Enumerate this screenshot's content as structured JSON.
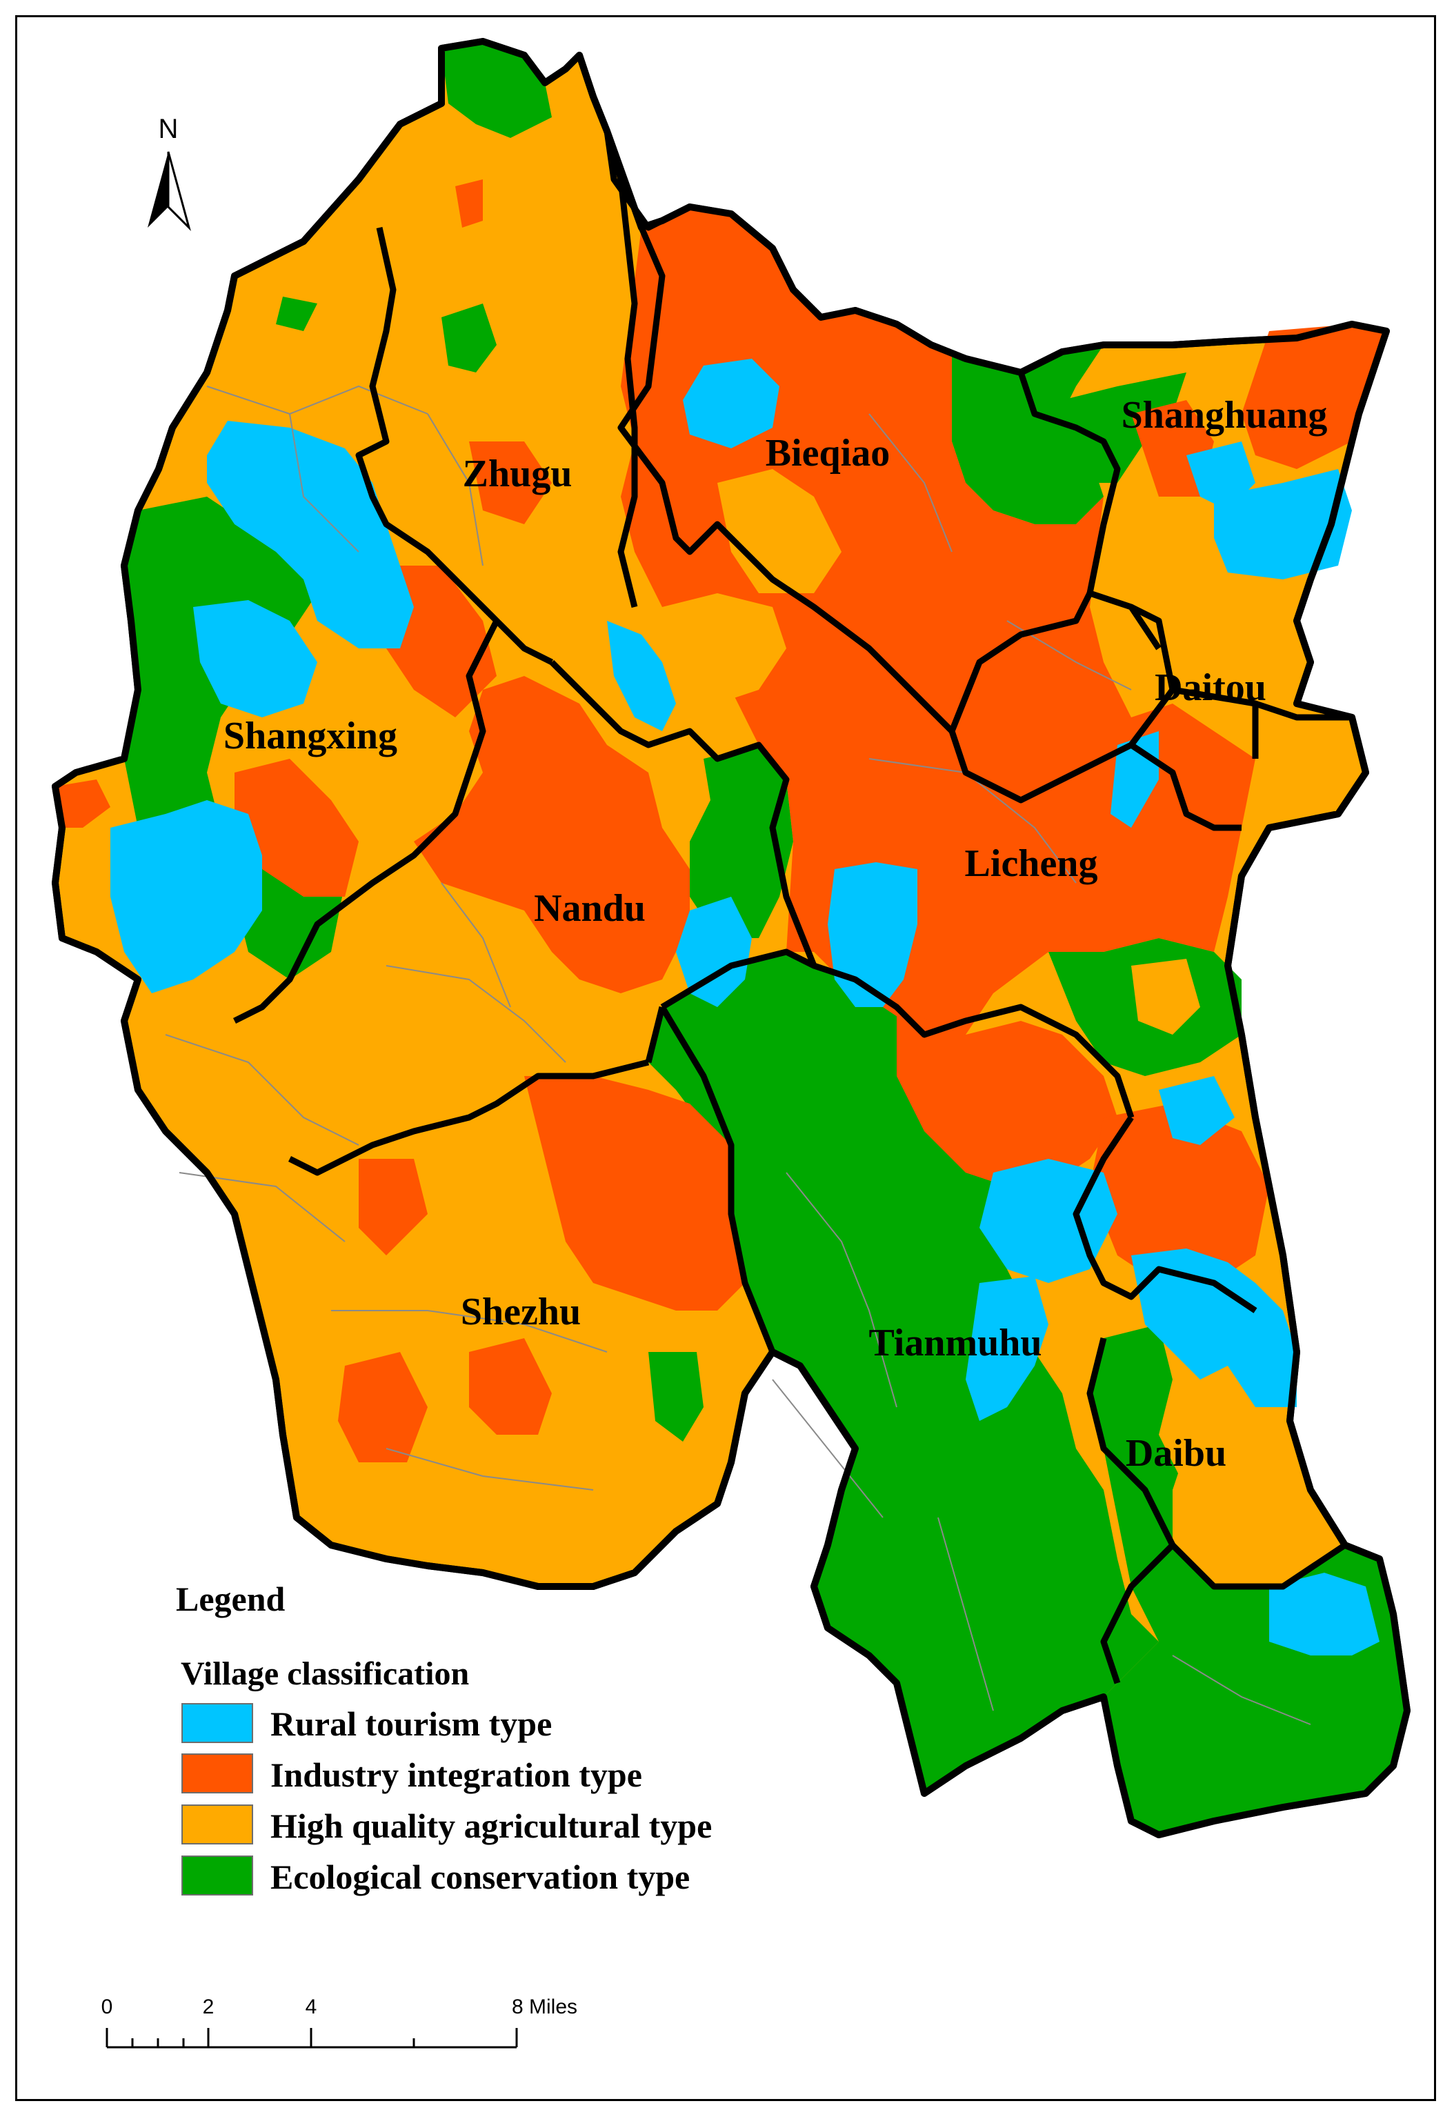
{
  "colors": {
    "rural_tourism": "#00c5ff",
    "industry_integration": "#ff5500",
    "high_quality_agricultural": "#ffaa00",
    "ecological_conservation": "#00a800",
    "boundary": "#000000",
    "village_line": "#8a8a8a"
  },
  "north_arrow": {
    "label": "N",
    "icon": "north-arrow-icon"
  },
  "towns": [
    {
      "name": "Zhugu"
    },
    {
      "name": "Bieqiao"
    },
    {
      "name": "Shanghuang"
    },
    {
      "name": "Daitou"
    },
    {
      "name": "Shangxing"
    },
    {
      "name": "Nandu"
    },
    {
      "name": "Licheng"
    },
    {
      "name": "Shezhu"
    },
    {
      "name": "Tianmuhu"
    },
    {
      "name": "Daibu"
    }
  ],
  "legend": {
    "title": "Legend",
    "subtitle": "Village classification",
    "items": [
      {
        "label": "Rural tourism type",
        "color": "#00c5ff"
      },
      {
        "label": "Industry integration type",
        "color": "#ff5500"
      },
      {
        "label": "High quality agricultural type",
        "color": "#ffaa00"
      },
      {
        "label": "Ecological conservation type",
        "color": "#00a800"
      }
    ]
  },
  "scale_bar": {
    "ticks": [
      "0",
      "2",
      "4",
      "8 Miles"
    ]
  }
}
